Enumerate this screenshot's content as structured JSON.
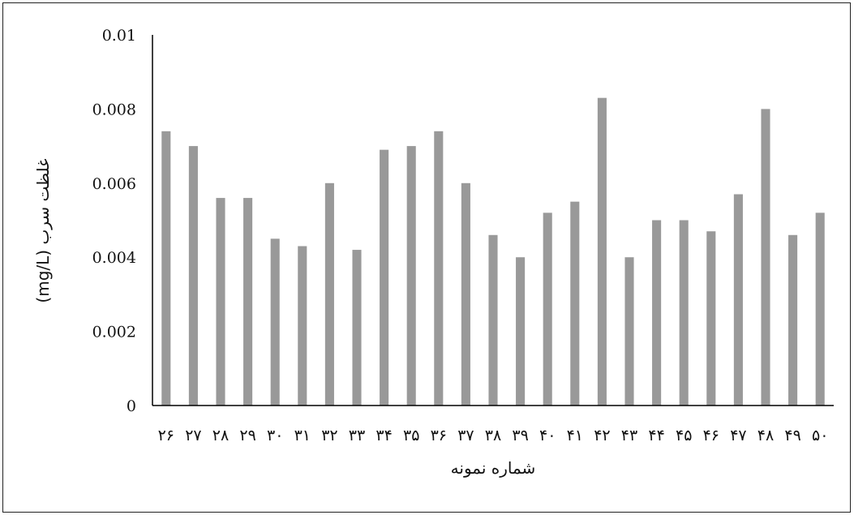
{
  "chart_data": {
    "type": "bar",
    "title": "",
    "xlabel": "شماره نمونه",
    "ylabel": "غلظت سرب (mg/L)",
    "ylim": [
      0,
      0.01
    ],
    "yticks": [
      "0",
      "0.002",
      "0.004",
      "0.006",
      "0.008",
      "0.01"
    ],
    "categories": [
      "۲۶",
      "۲۷",
      "۲۸",
      "۲۹",
      "۳۰",
      "۳۱",
      "۳۲",
      "۳۳",
      "۳۴",
      "۳۵",
      "۳۶",
      "۳۷",
      "۳۸",
      "۳۹",
      "۴۰",
      "۴۱",
      "۴۲",
      "۴۳",
      "۴۴",
      "۴۵",
      "۴۶",
      "۴۷",
      "۴۸",
      "۴۹",
      "۵۰"
    ],
    "values": [
      0.0074,
      0.007,
      0.0056,
      0.0056,
      0.0045,
      0.0043,
      0.006,
      0.0042,
      0.0069,
      0.007,
      0.0074,
      0.006,
      0.0046,
      0.004,
      0.0052,
      0.0055,
      0.0083,
      0.004,
      0.005,
      0.005,
      0.0047,
      0.0057,
      0.008,
      0.0046,
      0.0052
    ],
    "grid": false,
    "legend": "none",
    "bar_color": "#999999",
    "axis_color": "#000000"
  }
}
